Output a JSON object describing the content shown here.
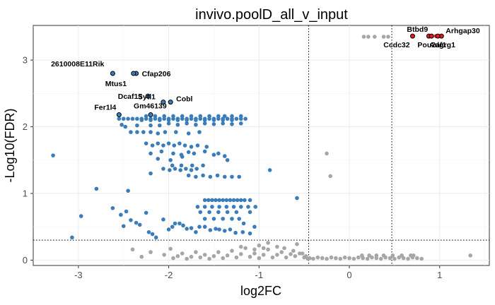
{
  "chart_data": {
    "type": "scatter",
    "title": "invivo.poolD_all_v_input",
    "xlabel": "log2FC",
    "ylabel": "-Log10(FDR)",
    "xlim": [
      -3.5,
      1.55
    ],
    "ylim": [
      -0.08,
      3.52
    ],
    "xticks": [
      -3,
      -2,
      -1,
      0,
      1
    ],
    "yticks": [
      0,
      1,
      2,
      3
    ],
    "grid": true,
    "colors": {
      "significant": "#3a7dba",
      "not_significant": "#a6a6a6",
      "highlight": "#e41a1c",
      "label_outline": "#000000"
    },
    "thresholds": {
      "x": [
        -0.45,
        0.47
      ],
      "y": 0.3
    },
    "series": [
      {
        "color": "#3a7dba",
        "points": [
          [
            -3.28,
            1.57
          ],
          [
            -3.07,
            0.34
          ],
          [
            -2.97,
            0.66
          ],
          [
            -2.8,
            1.07
          ],
          [
            -2.62,
            0.78
          ],
          [
            -2.53,
            0.68
          ],
          [
            -2.5,
            0.51
          ],
          [
            -2.47,
            0.73
          ],
          [
            -2.45,
            1.04
          ],
          [
            -2.42,
            0.6
          ],
          [
            -2.36,
            0.56
          ],
          [
            -2.32,
            0.53
          ],
          [
            -2.25,
            0.71
          ],
          [
            -2.22,
            0.42
          ],
          [
            -2.18,
            0.39
          ],
          [
            -2.14,
            0.34
          ],
          [
            -2.06,
            0.61
          ],
          [
            -2.0,
            0.46
          ],
          [
            -1.96,
            0.5
          ],
          [
            -1.93,
            0.55
          ],
          [
            -1.88,
            0.55
          ],
          [
            -1.84,
            0.52
          ],
          [
            -1.8,
            0.47
          ],
          [
            -1.75,
            0.48
          ],
          [
            -1.7,
            0.42
          ],
          [
            -1.66,
            0.5
          ],
          [
            -1.6,
            0.5
          ],
          [
            -1.54,
            0.45
          ],
          [
            -1.48,
            0.47
          ],
          [
            -1.44,
            0.46
          ],
          [
            -1.38,
            0.44
          ],
          [
            -1.32,
            0.46
          ],
          [
            -1.26,
            0.41
          ],
          [
            -1.18,
            0.42
          ],
          [
            -1.1,
            0.4
          ],
          [
            -1.05,
            0.5
          ],
          [
            -0.58,
            0.93
          ],
          [
            -0.88,
            1.35
          ],
          [
            -1.6,
            0.62
          ],
          [
            -1.5,
            0.62
          ],
          [
            -1.4,
            0.62
          ],
          [
            -1.3,
            0.62
          ],
          [
            -1.22,
            0.62
          ],
          [
            -1.17,
            0.55
          ],
          [
            -1.65,
            0.72
          ],
          [
            -1.55,
            0.72
          ],
          [
            -1.45,
            0.72
          ],
          [
            -1.35,
            0.72
          ],
          [
            -1.25,
            0.72
          ],
          [
            -1.1,
            0.72
          ],
          [
            -1.68,
            0.8
          ],
          [
            -1.6,
            0.8
          ],
          [
            -1.52,
            0.8
          ],
          [
            -1.44,
            0.8
          ],
          [
            -1.36,
            0.8
          ],
          [
            -1.28,
            0.8
          ],
          [
            -1.2,
            0.8
          ],
          [
            -1.12,
            0.8
          ],
          [
            -1.04,
            0.8
          ],
          [
            -1.6,
            0.9
          ],
          [
            -1.56,
            0.9
          ],
          [
            -1.52,
            0.9
          ],
          [
            -1.48,
            0.9
          ],
          [
            -1.44,
            0.9
          ],
          [
            -1.4,
            0.9
          ],
          [
            -1.36,
            0.9
          ],
          [
            -1.32,
            0.9
          ],
          [
            -1.28,
            0.9
          ],
          [
            -1.24,
            0.9
          ],
          [
            -1.2,
            0.9
          ],
          [
            -1.16,
            0.9
          ],
          [
            -1.1,
            0.9
          ],
          [
            -2.2,
            1.3
          ],
          [
            -2.06,
            1.37
          ],
          [
            -1.99,
            1.35
          ],
          [
            -1.93,
            1.37
          ],
          [
            -1.87,
            1.35
          ],
          [
            -1.81,
            1.37
          ],
          [
            -1.75,
            1.35
          ],
          [
            -1.69,
            1.37
          ],
          [
            -1.96,
            1.42
          ],
          [
            -1.86,
            1.42
          ],
          [
            -1.74,
            1.42
          ],
          [
            -1.62,
            1.42
          ],
          [
            -1.78,
            1.27
          ],
          [
            -1.7,
            1.25
          ],
          [
            -1.62,
            1.27
          ],
          [
            -1.54,
            1.25
          ],
          [
            -1.46,
            1.27
          ],
          [
            -1.38,
            1.25
          ],
          [
            -1.3,
            1.25
          ],
          [
            -1.22,
            1.25
          ],
          [
            -1.35,
            1.5
          ],
          [
            -2.12,
            1.52
          ],
          [
            -1.98,
            1.5
          ],
          [
            -1.85,
            1.55
          ],
          [
            -2.2,
            1.6
          ],
          [
            -2.08,
            1.63
          ],
          [
            -1.95,
            1.6
          ],
          [
            -1.86,
            1.58
          ],
          [
            -1.78,
            1.62
          ],
          [
            -1.72,
            1.6
          ],
          [
            -1.6,
            1.63
          ],
          [
            -1.5,
            1.58
          ],
          [
            -1.45,
            1.6
          ],
          [
            -1.38,
            1.56
          ],
          [
            -2.25,
            1.75
          ],
          [
            -2.18,
            1.72
          ],
          [
            -2.12,
            1.75
          ],
          [
            -2.06,
            1.72
          ],
          [
            -2.0,
            1.75
          ],
          [
            -1.94,
            1.72
          ],
          [
            -1.88,
            1.75
          ],
          [
            -1.82,
            1.72
          ],
          [
            -1.75,
            1.7
          ],
          [
            -1.68,
            1.72
          ],
          [
            -1.58,
            1.7
          ],
          [
            -2.42,
            1.92
          ],
          [
            -2.35,
            1.92
          ],
          [
            -2.28,
            1.92
          ],
          [
            -2.2,
            1.92
          ],
          [
            -2.12,
            1.9
          ],
          [
            -2.04,
            1.92
          ],
          [
            -1.92,
            1.92
          ],
          [
            -1.78,
            1.9
          ],
          [
            -1.66,
            1.92
          ],
          [
            -2.52,
            2.03
          ],
          [
            -2.48,
            2.0
          ],
          [
            -2.35,
            2.02
          ],
          [
            -2.2,
            2.02
          ],
          [
            -2.1,
            2.02
          ],
          [
            -2.0,
            2.05
          ],
          [
            -1.9,
            2.03
          ],
          [
            -1.8,
            2.05
          ],
          [
            -1.7,
            2.03
          ],
          [
            -1.6,
            2.05
          ],
          [
            -1.5,
            2.04
          ],
          [
            -1.4,
            2.05
          ],
          [
            -1.3,
            2.04
          ],
          [
            -1.2,
            2.05
          ],
          [
            -2.55,
            2.12
          ],
          [
            -2.5,
            2.12
          ],
          [
            -2.45,
            2.12
          ],
          [
            -2.4,
            2.12
          ],
          [
            -2.35,
            2.12
          ],
          [
            -2.3,
            2.12
          ],
          [
            -2.25,
            2.12
          ],
          [
            -2.2,
            2.12
          ],
          [
            -2.15,
            2.12
          ],
          [
            -2.1,
            2.12
          ],
          [
            -2.05,
            2.12
          ],
          [
            -2.0,
            2.12
          ],
          [
            -1.95,
            2.12
          ],
          [
            -1.9,
            2.12
          ],
          [
            -1.85,
            2.12
          ],
          [
            -1.8,
            2.12
          ],
          [
            -1.75,
            2.12
          ],
          [
            -1.7,
            2.12
          ],
          [
            -1.65,
            2.12
          ],
          [
            -1.6,
            2.12
          ],
          [
            -1.55,
            2.12
          ],
          [
            -1.5,
            2.12
          ],
          [
            -1.45,
            2.12
          ],
          [
            -1.4,
            2.12
          ],
          [
            -1.35,
            2.12
          ],
          [
            -1.3,
            2.12
          ],
          [
            -1.25,
            2.12
          ],
          [
            -1.2,
            2.12
          ],
          [
            -1.15,
            2.12
          ],
          [
            -2.3,
            2.1
          ],
          [
            -2.2,
            2.1
          ],
          [
            -2.1,
            2.1
          ],
          [
            -2.0,
            2.1
          ],
          [
            -1.9,
            2.1
          ],
          [
            -1.8,
            2.1
          ],
          [
            -1.7,
            2.1
          ],
          [
            -1.6,
            2.1
          ],
          [
            -1.5,
            2.1
          ],
          [
            -1.4,
            2.1
          ],
          [
            -1.3,
            2.1
          ],
          [
            -2.25,
            2.16
          ],
          [
            -2.15,
            2.16
          ],
          [
            -2.05,
            2.16
          ],
          [
            -1.95,
            2.16
          ],
          [
            -1.85,
            2.16
          ],
          [
            -1.75,
            2.16
          ],
          [
            -1.65,
            2.16
          ],
          [
            -1.55,
            2.16
          ],
          [
            -1.45,
            2.16
          ],
          [
            -1.38,
            2.16
          ],
          [
            -1.3,
            2.16
          ],
          [
            -1.2,
            2.16
          ]
        ]
      },
      {
        "color": "#a6a6a6",
        "points": [
          [
            -0.25,
            1.6
          ],
          [
            -0.21,
            1.26
          ],
          [
            0.16,
            3.35
          ],
          [
            0.21,
            3.35
          ],
          [
            0.28,
            3.35
          ],
          [
            0.38,
            3.35
          ],
          [
            0.43,
            3.35
          ],
          [
            1.34,
            0.07
          ],
          [
            -2.4,
            0.16
          ],
          [
            -2.3,
            0.05
          ],
          [
            -2.2,
            0.12
          ],
          [
            -2.05,
            0.08
          ],
          [
            -1.98,
            0.17
          ],
          [
            -1.95,
            0.03
          ],
          [
            -1.9,
            0.06
          ],
          [
            -1.85,
            0.1
          ],
          [
            -1.8,
            0.02
          ],
          [
            -1.75,
            0.05
          ],
          [
            -1.7,
            0.12
          ],
          [
            -1.65,
            0.04
          ],
          [
            -1.6,
            0.08
          ],
          [
            -1.55,
            0.02
          ],
          [
            -1.5,
            0.06
          ],
          [
            -1.45,
            0.12
          ],
          [
            -1.4,
            0.03
          ],
          [
            -1.35,
            0.07
          ],
          [
            -1.3,
            0.14
          ],
          [
            -1.25,
            0.04
          ],
          [
            -1.2,
            0.09
          ],
          [
            -1.15,
            0.18
          ],
          [
            -1.1,
            0.05
          ],
          [
            -1.05,
            0.1
          ],
          [
            -1.0,
            0.03
          ],
          [
            -0.95,
            0.08
          ],
          [
            -0.9,
            0.16
          ],
          [
            -0.85,
            0.04
          ],
          [
            -0.8,
            0.08
          ],
          [
            -0.75,
            0.12
          ],
          [
            -0.7,
            0.04
          ],
          [
            -0.65,
            0.09
          ],
          [
            -0.6,
            0.06
          ],
          [
            -0.55,
            0.1
          ],
          [
            -0.5,
            0.04
          ],
          [
            -1.2,
            0.2
          ],
          [
            -1.05,
            0.16
          ],
          [
            -1.0,
            0.22
          ],
          [
            -0.95,
            0.18
          ],
          [
            -0.9,
            0.26
          ],
          [
            -0.8,
            0.2
          ],
          [
            -0.72,
            0.18
          ],
          [
            -0.62,
            0.14
          ],
          [
            -0.58,
            0.24
          ],
          [
            -0.52,
            0.1
          ],
          [
            -0.48,
            0.06
          ],
          [
            -0.46,
            0.02
          ],
          [
            -0.44,
            0.03
          ],
          [
            -0.4,
            0.02
          ],
          [
            -0.35,
            0.04
          ],
          [
            -0.3,
            0.03
          ],
          [
            -0.25,
            0.02
          ],
          [
            -0.2,
            0.04
          ],
          [
            -0.15,
            0.03
          ],
          [
            -0.1,
            0.02
          ],
          [
            -0.05,
            0.04
          ],
          [
            0.0,
            0.03
          ],
          [
            0.05,
            0.02
          ],
          [
            0.1,
            0.04
          ],
          [
            0.15,
            0.03
          ],
          [
            0.2,
            0.02
          ],
          [
            0.25,
            0.04
          ],
          [
            0.3,
            0.03
          ],
          [
            0.35,
            0.02
          ],
          [
            0.4,
            0.04
          ],
          [
            0.45,
            0.03
          ],
          [
            0.5,
            0.02
          ],
          [
            0.55,
            0.04
          ],
          [
            0.6,
            0.03
          ],
          [
            0.65,
            0.02
          ],
          [
            0.7,
            0.04
          ],
          [
            0.75,
            0.03
          ],
          [
            0.8,
            0.02
          ],
          [
            0.14,
            0.07
          ],
          [
            0.22,
            0.07
          ],
          [
            0.3,
            0.07
          ],
          [
            0.38,
            0.07
          ],
          [
            0.48,
            0.07
          ],
          [
            0.58,
            0.07
          ],
          [
            0.68,
            0.07
          ],
          [
            0.71,
            0.07
          ]
        ]
      },
      {
        "color": "#e41a1c",
        "points": [
          [
            0.7,
            3.36
          ],
          [
            0.88,
            3.36
          ],
          [
            0.91,
            3.36
          ],
          [
            0.96,
            3.36
          ],
          [
            0.98,
            3.36
          ],
          [
            1.02,
            3.36
          ]
        ]
      }
    ],
    "labeled_points": [
      {
        "gene": "2610008E11Rik",
        "x": -2.62,
        "y": 2.8,
        "fill": "#3a7dba"
      },
      {
        "gene": "Cfap206",
        "x": -2.36,
        "y": 2.8,
        "fill": "#3a7dba"
      },
      {
        "gene": "Mtus1",
        "x": -2.39,
        "y": 2.8,
        "fill": "#3a7dba"
      },
      {
        "gene": "Dcaf15",
        "x": -2.23,
        "y": 2.46,
        "fill": "#3a7dba"
      },
      {
        "gene": "Sytl1",
        "x": -2.06,
        "y": 2.37,
        "fill": "#3a7dba"
      },
      {
        "gene": "Cobl",
        "x": -1.98,
        "y": 2.37,
        "fill": "#3a7dba"
      },
      {
        "gene": "Fer1l4",
        "x": -2.55,
        "y": 2.18,
        "fill": "#3a7dba"
      },
      {
        "gene": "Gm46139",
        "x": -2.2,
        "y": 2.18,
        "fill": "#3a7dba"
      },
      {
        "gene": "Btbd9",
        "x": 0.7,
        "y": 3.36,
        "fill": "#e41a1c"
      },
      {
        "gene": "Pou2af1",
        "x": 0.88,
        "y": 3.36,
        "fill": "#e41a1c"
      },
      {
        "gene": "Arhgap30",
        "x": 1.02,
        "y": 3.36,
        "fill": "#e41a1c"
      },
      {
        "gene": "Adgrg1",
        "x": 0.98,
        "y": 3.36,
        "fill": "#e41a1c"
      },
      {
        "gene": "Ccdc32",
        "x": 0.91,
        "y": 3.36,
        "fill": "#e41a1c"
      }
    ]
  }
}
